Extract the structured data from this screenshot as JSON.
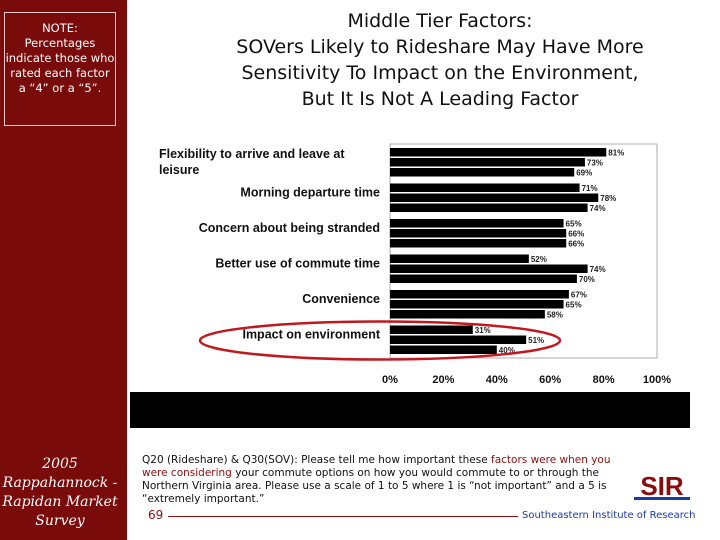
{
  "sidebar": {
    "note": "NOTE: Percentages indicate those who rated each factor a “4” or a “5”.",
    "survey_label": "2005 Rappahannock - Rapidan Market Survey"
  },
  "title": {
    "line1": "Middle Tier Factors:",
    "line2": "SOVers Likely to Rideshare May Have More",
    "line3": "Sensitivity To  Impact on the Environment,",
    "line4": "But It Is Not A Leading Factor"
  },
  "chart_data": {
    "type": "bar",
    "orientation": "horizontal",
    "categories": [
      "Flexibility to arrive and leave at leisure",
      "Morning departure time",
      "Concern about being stranded",
      "Better use of commute time",
      "Convenience",
      "Impact on environment"
    ],
    "series": [
      {
        "values": [
          81,
          71,
          65,
          52,
          67,
          31
        ]
      },
      {
        "values": [
          73,
          78,
          66,
          74,
          65,
          51
        ]
      },
      {
        "values": [
          69,
          74,
          66,
          70,
          58,
          40
        ]
      }
    ],
    "data_labels": [
      [
        "81%",
        "73%",
        "69%"
      ],
      [
        "71%",
        "78%",
        "74%"
      ],
      [
        "65%",
        "66%",
        "66%"
      ],
      [
        "52%",
        "74%",
        "70%"
      ],
      [
        "67%",
        "65%",
        "58%"
      ],
      [
        "31%",
        "51%",
        "40%"
      ]
    ],
    "x_ticks": [
      "0%",
      "20%",
      "40%",
      "60%",
      "80%",
      "100%"
    ],
    "xlim": [
      0,
      100
    ],
    "grid": false,
    "highlighted_category": "Impact on environment",
    "colors": {
      "bar": "#000000",
      "highlight_ellipse": "#c0181e"
    }
  },
  "question": {
    "part1": "Q20 (Rideshare) & Q30(SOV): Please tell me how important these ",
    "highlight1": "factors were when you were considering",
    "part2": " your commute options on how you would commute to or through the Northern Virginia area. Please use a scale of 1 to 5 where 1 is “not important” and a 5 is “extremely important.”"
  },
  "footer": {
    "page_number": "69",
    "institute": "Southeastern Institute of Research",
    "logo_text": "SIR"
  },
  "colors": {
    "sidebar": "#7a0b0b",
    "accent": "#8a0d0d",
    "institute": "#1a3aa8"
  }
}
